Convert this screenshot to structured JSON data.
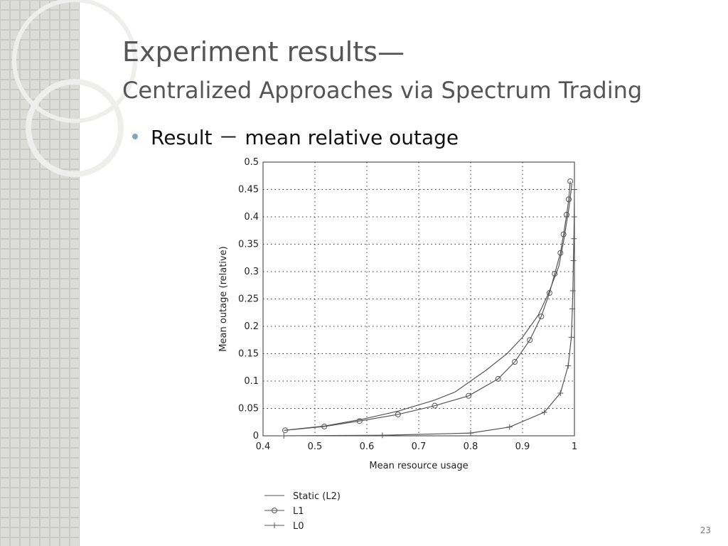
{
  "slide": {
    "title": "Experiment results—",
    "subtitle": "Centralized Approaches via Spectrum Trading",
    "bullet": "Result － mean relative outage",
    "page_number": "23"
  },
  "chart_data": {
    "type": "line",
    "xlabel": "Mean resource usage",
    "ylabel": "Mean outage (relative)",
    "xlim": [
      0.4,
      1
    ],
    "ylim": [
      0,
      0.5
    ],
    "xticks": [
      0.4,
      0.5,
      0.6,
      0.7,
      0.8,
      0.9,
      1
    ],
    "yticks": [
      0,
      0.05,
      0.1,
      0.15,
      0.2,
      0.25,
      0.3,
      0.35,
      0.4,
      0.45,
      0.5
    ],
    "grid": true,
    "legend": "below",
    "series": [
      {
        "name": "Static (L2)",
        "color": "#555555",
        "marker": "none",
        "x": [
          0.44,
          0.52,
          0.59,
          0.66,
          0.73,
          0.77,
          0.8,
          0.83,
          0.87,
          0.9,
          0.93,
          0.95,
          0.97,
          0.98,
          0.99,
          0.995
        ],
        "values": [
          0.01,
          0.018,
          0.03,
          0.045,
          0.065,
          0.08,
          0.1,
          0.12,
          0.15,
          0.18,
          0.22,
          0.26,
          0.31,
          0.36,
          0.42,
          0.46
        ]
      },
      {
        "name": "L1",
        "color": "#555555",
        "marker": "circle",
        "x": [
          0.4425,
          0.518,
          0.586,
          0.66,
          0.731,
          0.796,
          0.853,
          0.885,
          0.914,
          0.936,
          0.952,
          0.962,
          0.973,
          0.979,
          0.985,
          0.989,
          0.992
        ],
        "values": [
          0.01,
          0.017,
          0.027,
          0.039,
          0.055,
          0.073,
          0.104,
          0.135,
          0.175,
          0.218,
          0.261,
          0.296,
          0.334,
          0.368,
          0.404,
          0.432,
          0.465
        ]
      },
      {
        "name": "L0",
        "color": "#555555",
        "marker": "plus",
        "x": [
          0.44,
          0.63,
          0.8,
          0.875,
          0.942,
          0.973,
          0.988,
          0.994,
          0.996,
          0.997,
          0.998,
          0.999,
          0.9995,
          1
        ],
        "values": [
          0,
          0.001,
          0.005,
          0.016,
          0.043,
          0.078,
          0.128,
          0.18,
          0.232,
          0.265,
          0.32,
          0.36,
          0.4,
          0.45
        ]
      }
    ]
  }
}
